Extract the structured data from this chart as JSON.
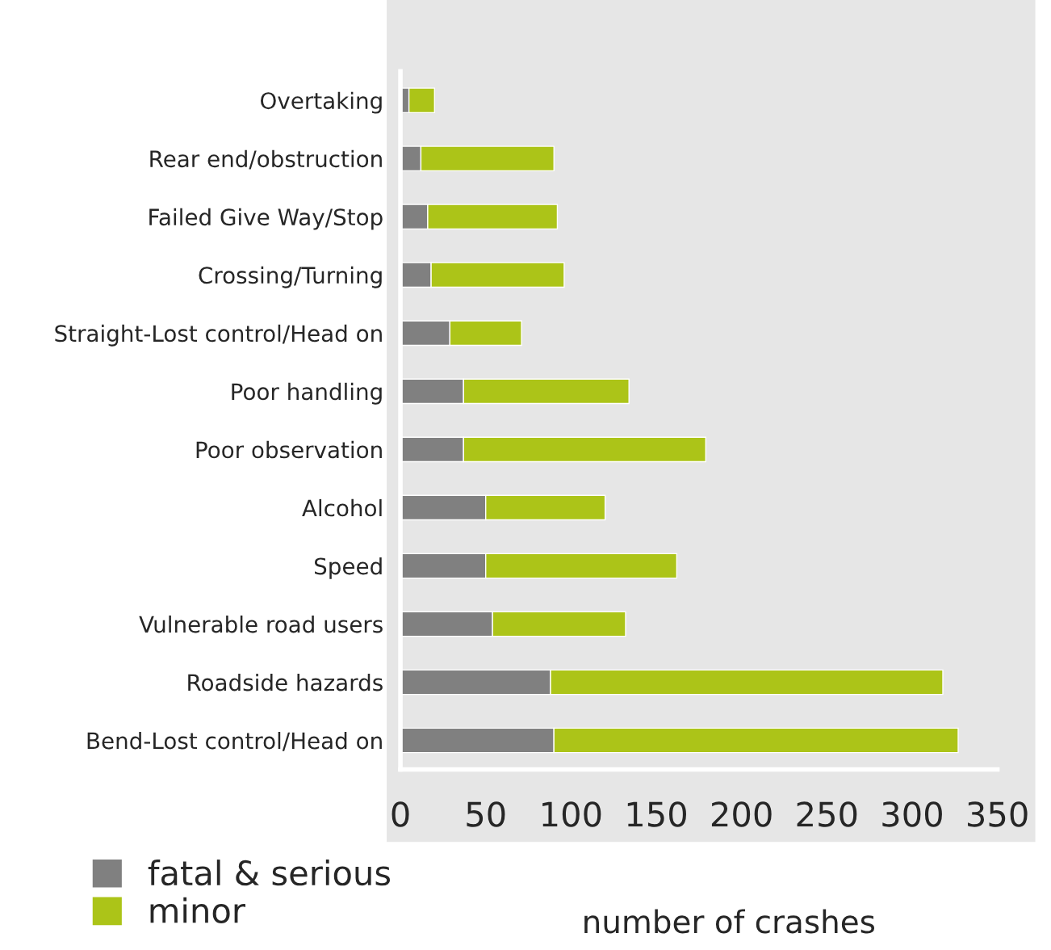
{
  "chart_data": {
    "type": "bar",
    "orientation": "horizontal",
    "stacked": true,
    "categories": [
      "Overtaking",
      "Rear end/obstruction",
      "Failed Give Way/Stop",
      "Crossing/Turning",
      "Straight-Lost control/Head on",
      "Poor handling",
      "Poor observation",
      "Alcohol",
      "Speed",
      "Vulnerable road users",
      "Roadside hazards",
      "Bend-Lost control/Head on"
    ],
    "series": [
      {
        "name": "fatal & serious",
        "color": "#808080",
        "values": [
          5,
          12,
          16,
          18,
          29,
          37,
          37,
          50,
          50,
          54,
          88,
          90
        ]
      },
      {
        "name": "minor",
        "color": "#acc418",
        "values": [
          15,
          78,
          76,
          78,
          42,
          97,
          142,
          70,
          112,
          78,
          230,
          237
        ]
      }
    ],
    "xlabel": "number of crashes",
    "xlim": [
      0,
      350
    ],
    "xticks": [
      0,
      50,
      100,
      150,
      200,
      250,
      300,
      350
    ],
    "grid": false,
    "legend": "bottom left"
  }
}
